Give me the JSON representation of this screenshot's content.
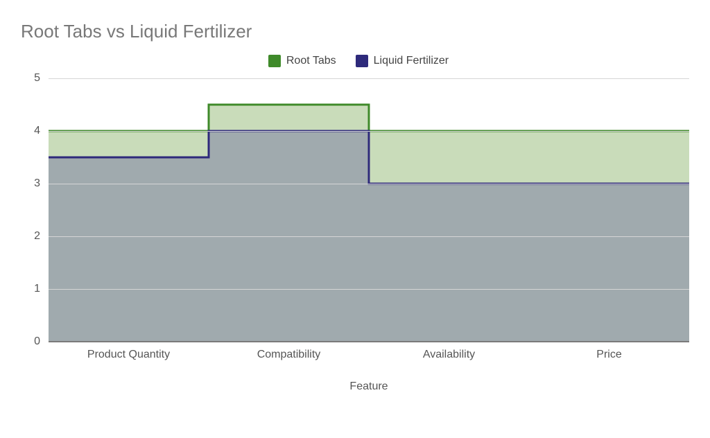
{
  "chart": {
    "type": "area-step",
    "title": "Root Tabs vs Liquid Fertilizer",
    "title_fontsize": 26,
    "title_color": "#787878",
    "background_color": "#ffffff",
    "x_axis": {
      "title": "Feature",
      "categories": [
        "Product Quantity",
        "Compatibility",
        "Availability",
        "Price"
      ]
    },
    "y_axis": {
      "ylim": [
        0,
        5
      ],
      "ytick_step": 1,
      "tick_labels": [
        "0",
        "1",
        "2",
        "3",
        "4",
        "5"
      ]
    },
    "grid_color": "#d6d6d6",
    "axis_zero_color": "#7a7a7a",
    "label_fontsize": 16,
    "label_color": "#555555",
    "series": [
      {
        "name": "Root Tabs",
        "values": [
          4.0,
          4.5,
          4.0,
          4.0
        ],
        "stroke_color": "#3f8a2a",
        "fill_color": "#bfd6ae",
        "fill_opacity": 0.85,
        "line_width": 3
      },
      {
        "name": "Liquid Fertilizer",
        "values": [
          3.5,
          4.0,
          3.0,
          3.0
        ],
        "stroke_color": "#2e2a7b",
        "fill_color": "#99a1ab",
        "fill_opacity": 0.85,
        "line_width": 3
      }
    ],
    "legend": {
      "position": "top-center",
      "swatch_size": 18
    }
  }
}
